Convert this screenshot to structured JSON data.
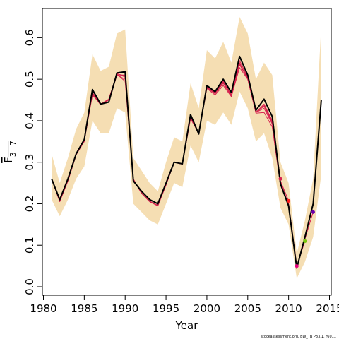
{
  "chart_data": {
    "type": "line",
    "title": "",
    "xlabel": "Year",
    "ylabel": "F",
    "ylabel_subscript": "3−7",
    "xlim": [
      1980,
      2015
    ],
    "ylim": [
      0,
      0.65
    ],
    "x_ticks": [
      1980,
      1985,
      1990,
      1995,
      2000,
      2005,
      2010,
      2015
    ],
    "y_ticks": [
      0.0,
      0.1,
      0.2,
      0.3,
      0.4,
      0.5,
      0.6
    ],
    "x_tick_labels": [
      "1980",
      "1985",
      "1990",
      "1995",
      "2000",
      "2005",
      "2010",
      "2015"
    ],
    "y_tick_labels": [
      "0.0",
      "0.1",
      "0.2",
      "0.3",
      "0.4",
      "0.5",
      "0.6"
    ],
    "grid": false,
    "colors": {
      "band": "#f5deb3",
      "main": "#000000",
      "retro": "#d6224f"
    },
    "band": {
      "x": [
        1981,
        1982,
        1983,
        1984,
        1985,
        1986,
        1987,
        1988,
        1989,
        1990,
        1991,
        1992,
        1993,
        1994,
        1995,
        1996,
        1997,
        1998,
        1999,
        2000,
        2001,
        2002,
        2003,
        2004,
        2005,
        2006,
        2007,
        2008,
        2009,
        2010,
        2011,
        2012,
        2013,
        2014
      ],
      "upper": [
        0.32,
        0.25,
        0.31,
        0.38,
        0.42,
        0.56,
        0.52,
        0.53,
        0.61,
        0.62,
        0.31,
        0.28,
        0.25,
        0.23,
        0.3,
        0.36,
        0.35,
        0.49,
        0.43,
        0.57,
        0.55,
        0.59,
        0.54,
        0.65,
        0.61,
        0.5,
        0.54,
        0.51,
        0.3,
        0.25,
        0.08,
        0.16,
        0.26,
        0.63
      ],
      "lower": [
        0.21,
        0.17,
        0.21,
        0.26,
        0.29,
        0.4,
        0.37,
        0.37,
        0.43,
        0.42,
        0.2,
        0.18,
        0.16,
        0.15,
        0.2,
        0.25,
        0.24,
        0.34,
        0.3,
        0.4,
        0.39,
        0.42,
        0.39,
        0.47,
        0.43,
        0.35,
        0.37,
        0.31,
        0.19,
        0.15,
        0.02,
        0.06,
        0.12,
        0.27
      ]
    },
    "series": [
      {
        "x": [
          1981,
          1982,
          1983,
          1984,
          1985,
          1986,
          1987,
          1988,
          1989,
          1990,
          1991,
          1992,
          1993,
          1994,
          1995,
          1996,
          1997,
          1998,
          1999,
          2000,
          2001,
          2002,
          2003,
          2004,
          2005,
          2006,
          2007,
          2008,
          2009,
          2010,
          2011,
          2012,
          2013,
          2014
        ],
        "values": [
          0.26,
          0.21,
          0.26,
          0.32,
          0.355,
          0.475,
          0.44,
          0.445,
          0.515,
          0.518,
          0.255,
          0.23,
          0.21,
          0.2,
          0.25,
          0.3,
          0.296,
          0.415,
          0.368,
          0.485,
          0.47,
          0.5,
          0.468,
          0.555,
          0.51,
          0.425,
          0.452,
          0.41,
          0.248,
          0.195,
          0.045,
          0.12,
          0.2,
          0.45
        ],
        "color": "#000000",
        "width": 2
      },
      {
        "x": [
          1981,
          1982,
          1983,
          1984,
          1985,
          1986,
          1987,
          1988,
          1989,
          1990,
          1991,
          1992,
          1993,
          1994,
          1995,
          1996,
          1997,
          1998,
          1999,
          2000,
          2001,
          2002,
          2003,
          2004,
          2005,
          2006,
          2007,
          2008,
          2009
        ],
        "values": [
          0.26,
          0.205,
          0.255,
          0.318,
          0.35,
          0.468,
          0.44,
          0.452,
          0.512,
          0.495,
          0.26,
          0.225,
          0.205,
          0.195,
          0.245,
          0.3,
          0.295,
          0.408,
          0.37,
          0.48,
          0.465,
          0.49,
          0.46,
          0.54,
          0.5,
          0.42,
          0.435,
          0.395,
          0.26
        ],
        "color": "#d6224f",
        "width": 1
      },
      {
        "x": [
          1981,
          1982,
          1983,
          1984,
          1985,
          1986,
          1987,
          1988,
          1989,
          1990,
          1991,
          1992,
          1993,
          1994,
          1995,
          1996,
          1997,
          1998,
          1999,
          2000,
          2001,
          2002,
          2003,
          2004,
          2005,
          2006,
          2007,
          2008,
          2009,
          2010
        ],
        "values": [
          0.26,
          0.205,
          0.255,
          0.318,
          0.352,
          0.465,
          0.438,
          0.45,
          0.51,
          0.51,
          0.258,
          0.225,
          0.205,
          0.195,
          0.245,
          0.3,
          0.296,
          0.41,
          0.368,
          0.482,
          0.468,
          0.495,
          0.462,
          0.545,
          0.505,
          0.42,
          0.44,
          0.4,
          0.255,
          0.207
        ],
        "color": "#d6224f",
        "width": 1
      },
      {
        "x": [
          1981,
          1982,
          1983,
          1984,
          1985,
          1986,
          1987,
          1988,
          1989,
          1990,
          1991,
          1992,
          1993,
          1994,
          1995,
          1996,
          1997,
          1998,
          1999,
          2000,
          2001,
          2002,
          2003,
          2004,
          2005,
          2006,
          2007,
          2008,
          2009,
          2010,
          2011
        ],
        "values": [
          0.26,
          0.207,
          0.257,
          0.318,
          0.353,
          0.462,
          0.44,
          0.45,
          0.51,
          0.5,
          0.258,
          0.226,
          0.206,
          0.196,
          0.246,
          0.3,
          0.296,
          0.405,
          0.37,
          0.478,
          0.462,
          0.485,
          0.458,
          0.528,
          0.5,
          0.418,
          0.42,
          0.385,
          0.245,
          0.2,
          0.05
        ],
        "color": "#d6224f",
        "width": 1
      },
      {
        "x": [
          1981,
          1982,
          1983,
          1984,
          1985,
          1986,
          1987,
          1988,
          1989,
          1990,
          1991,
          1992,
          1993,
          1994,
          1995,
          1996,
          1997,
          1998,
          1999,
          2000,
          2001,
          2002,
          2003,
          2004,
          2005,
          2006,
          2007,
          2008,
          2009,
          2010,
          2011,
          2012
        ],
        "values": [
          0.26,
          0.206,
          0.256,
          0.318,
          0.352,
          0.466,
          0.44,
          0.452,
          0.514,
          0.505,
          0.258,
          0.226,
          0.206,
          0.196,
          0.246,
          0.3,
          0.296,
          0.41,
          0.37,
          0.48,
          0.466,
          0.492,
          0.462,
          0.535,
          0.502,
          0.42,
          0.43,
          0.392,
          0.25,
          0.2,
          0.05,
          0.11
        ],
        "color": "#d6224f",
        "width": 1
      },
      {
        "x": [
          1981,
          1982,
          1983,
          1984,
          1985,
          1986,
          1987,
          1988,
          1989,
          1990,
          1991,
          1992,
          1993,
          1994,
          1995,
          1996,
          1997,
          1998,
          1999,
          2000,
          2001,
          2002,
          2003,
          2004,
          2005,
          2006,
          2007,
          2008,
          2009,
          2010,
          2011,
          2012,
          2013
        ],
        "values": [
          0.26,
          0.206,
          0.256,
          0.318,
          0.352,
          0.467,
          0.44,
          0.451,
          0.513,
          0.508,
          0.258,
          0.226,
          0.206,
          0.196,
          0.246,
          0.3,
          0.296,
          0.412,
          0.369,
          0.481,
          0.467,
          0.494,
          0.463,
          0.538,
          0.503,
          0.421,
          0.438,
          0.398,
          0.252,
          0.198,
          0.048,
          0.115,
          0.18
        ],
        "color": "#d6224f",
        "width": 1
      }
    ],
    "endpoints": [
      {
        "x": 2009,
        "y": 0.26,
        "color": "#d6224f"
      },
      {
        "x": 2010,
        "y": 0.207,
        "color": "#ff1a1a"
      },
      {
        "x": 2011,
        "y": 0.05,
        "color": "#e6007e"
      },
      {
        "x": 2012,
        "y": 0.11,
        "color": "#7ac70c"
      },
      {
        "x": 2013,
        "y": 0.18,
        "color": "#6a00a8"
      }
    ]
  },
  "footnote": "stockassessment.org, BW_TB P83.1, r6011"
}
